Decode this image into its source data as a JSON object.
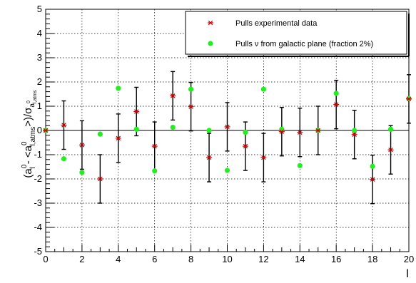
{
  "chart_data": {
    "type": "scatter",
    "title": "",
    "xlabel": "l",
    "ylabel": {
      "p1": "(a",
      "sup1": "0",
      "sub1": "l",
      "p2": " - <a",
      "sup2": "0",
      "sub2": "l,atms",
      "p3": ">)/σ",
      "sub3": "a",
      "sub3sup": "0",
      "sub3sub": "l,atms"
    },
    "xlim": [
      0,
      20
    ],
    "ylim": [
      -5,
      5
    ],
    "x_ticks": [
      "0",
      "2",
      "4",
      "6",
      "8",
      "10",
      "12",
      "14",
      "16",
      "18",
      "20"
    ],
    "y_ticks": [
      "-5",
      "-4",
      "-3",
      "-2",
      "-1",
      "0",
      "1",
      "2",
      "3",
      "4",
      "5"
    ],
    "grid": true,
    "legend_position": "top-right",
    "series": [
      {
        "name": "Pulls experimental data",
        "marker": "asterisk",
        "color": "#cc0000",
        "points": [
          {
            "x": 0,
            "y": 0.0,
            "err": 0.0
          },
          {
            "x": 1,
            "y": 0.22,
            "err": 1.0
          },
          {
            "x": 2,
            "y": -0.6,
            "err": 1.0
          },
          {
            "x": 3,
            "y": -2.0,
            "err": 1.0
          },
          {
            "x": 4,
            "y": -0.32,
            "err": 1.0
          },
          {
            "x": 5,
            "y": 0.78,
            "err": 1.0
          },
          {
            "x": 6,
            "y": -0.65,
            "err": 1.0
          },
          {
            "x": 7,
            "y": 1.43,
            "err": 1.0
          },
          {
            "x": 8,
            "y": 0.98,
            "err": 1.0
          },
          {
            "x": 9,
            "y": -1.12,
            "err": 1.0
          },
          {
            "x": 10,
            "y": 0.15,
            "err": 1.0
          },
          {
            "x": 11,
            "y": -0.65,
            "err": 1.0
          },
          {
            "x": 12,
            "y": -1.12,
            "err": 1.0
          },
          {
            "x": 13,
            "y": -0.05,
            "err": 1.0
          },
          {
            "x": 14,
            "y": -0.08,
            "err": 1.0
          },
          {
            "x": 15,
            "y": 0.0,
            "err": 1.0
          },
          {
            "x": 16,
            "y": 1.07,
            "err": 1.0
          },
          {
            "x": 17,
            "y": -0.17,
            "err": 1.0
          },
          {
            "x": 18,
            "y": -2.02,
            "err": 1.0
          },
          {
            "x": 19,
            "y": -0.8,
            "err": 1.0
          },
          {
            "x": 20,
            "y": 1.3,
            "err": 1.0
          }
        ]
      },
      {
        "name": "Pulls ν from galactic plane (fraction 2%)",
        "marker": "circle",
        "color": "#22ee22",
        "points": [
          {
            "x": 0,
            "y": 0.0
          },
          {
            "x": 1,
            "y": -1.17
          },
          {
            "x": 2,
            "y": -1.73
          },
          {
            "x": 3,
            "y": -0.15
          },
          {
            "x": 4,
            "y": 1.74
          },
          {
            "x": 5,
            "y": 0.05
          },
          {
            "x": 6,
            "y": -1.67
          },
          {
            "x": 7,
            "y": 0.13
          },
          {
            "x": 8,
            "y": 1.7
          },
          {
            "x": 9,
            "y": 0.0
          },
          {
            "x": 10,
            "y": -1.65
          },
          {
            "x": 11,
            "y": -0.08
          },
          {
            "x": 12,
            "y": 1.7
          },
          {
            "x": 13,
            "y": 0.05
          },
          {
            "x": 14,
            "y": -1.45
          },
          {
            "x": 15,
            "y": 0.0
          },
          {
            "x": 16,
            "y": 1.53
          },
          {
            "x": 17,
            "y": 0.0
          },
          {
            "x": 18,
            "y": -1.48
          },
          {
            "x": 19,
            "y": 0.05
          },
          {
            "x": 20,
            "y": 1.32
          }
        ]
      }
    ]
  }
}
